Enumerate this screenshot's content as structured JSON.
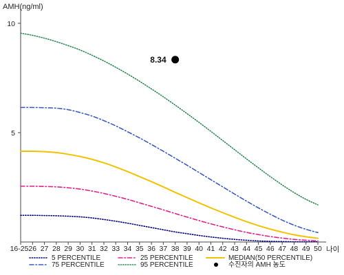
{
  "chart_data": {
    "type": "line",
    "ylabel": "AMH(ng/ml)",
    "xlabel": "나이",
    "categories": [
      "16-25",
      "26",
      "27",
      "28",
      "29",
      "30",
      "31",
      "32",
      "33",
      "34",
      "35",
      "36",
      "37",
      "38",
      "39",
      "40",
      "41",
      "42",
      "43",
      "44",
      "45",
      "46",
      "47",
      "48",
      "49",
      "50"
    ],
    "ylim": [
      0,
      10.5
    ],
    "yticks": [
      5,
      10
    ],
    "grid": false,
    "legend_position": "bottom",
    "series": [
      {
        "name": "5 PERCENTILE",
        "color": "#000080",
        "dash": "dotted",
        "values": [
          1.22,
          1.22,
          1.21,
          1.2,
          1.18,
          1.15,
          1.1,
          1.03,
          0.95,
          0.86,
          0.76,
          0.66,
          0.56,
          0.46,
          0.38,
          0.3,
          0.23,
          0.17,
          0.12,
          0.08,
          0.05,
          0.03,
          0.02,
          0.01,
          0.01,
          0.01
        ]
      },
      {
        "name": "25 PERCENTILE",
        "color": "#e0208a",
        "dash": "dashdot",
        "values": [
          2.55,
          2.55,
          2.54,
          2.52,
          2.48,
          2.42,
          2.33,
          2.22,
          2.09,
          1.95,
          1.79,
          1.63,
          1.47,
          1.3,
          1.14,
          0.98,
          0.83,
          0.69,
          0.56,
          0.44,
          0.34,
          0.25,
          0.18,
          0.12,
          0.08,
          0.05
        ]
      },
      {
        "name": "MEDIAN(50 PERCENTILE)",
        "color": "#f2c200",
        "dash": "solid",
        "values": [
          4.15,
          4.15,
          4.13,
          4.09,
          4.01,
          3.91,
          3.78,
          3.62,
          3.43,
          3.22,
          2.99,
          2.76,
          2.52,
          2.27,
          2.03,
          1.79,
          1.56,
          1.34,
          1.13,
          0.93,
          0.75,
          0.59,
          0.45,
          0.33,
          0.24,
          0.17
        ]
      },
      {
        "name": "75 PERCENTILE",
        "color": "#3a5bc7",
        "dash": "dashdot",
        "values": [
          6.15,
          6.15,
          6.14,
          6.12,
          6.05,
          5.92,
          5.76,
          5.55,
          5.31,
          5.04,
          4.76,
          4.46,
          4.15,
          3.83,
          3.51,
          3.18,
          2.85,
          2.52,
          2.19,
          1.87,
          1.56,
          1.27,
          1.0,
          0.77,
          0.58,
          0.43
        ]
      },
      {
        "name": "95 PERCENTILE",
        "color": "#2e8b57",
        "dash": "dotted",
        "values": [
          9.55,
          9.45,
          9.32,
          9.16,
          8.98,
          8.78,
          8.54,
          8.28,
          7.99,
          7.68,
          7.35,
          7.0,
          6.64,
          6.26,
          5.87,
          5.47,
          5.06,
          4.64,
          4.22,
          3.8,
          3.39,
          2.99,
          2.61,
          2.26,
          1.95,
          1.7
        ]
      },
      {
        "name": "수진자의 AMH 농도",
        "color": "#000000",
        "type": "point",
        "x": "38",
        "y": 8.34,
        "label": "8.34"
      }
    ]
  }
}
